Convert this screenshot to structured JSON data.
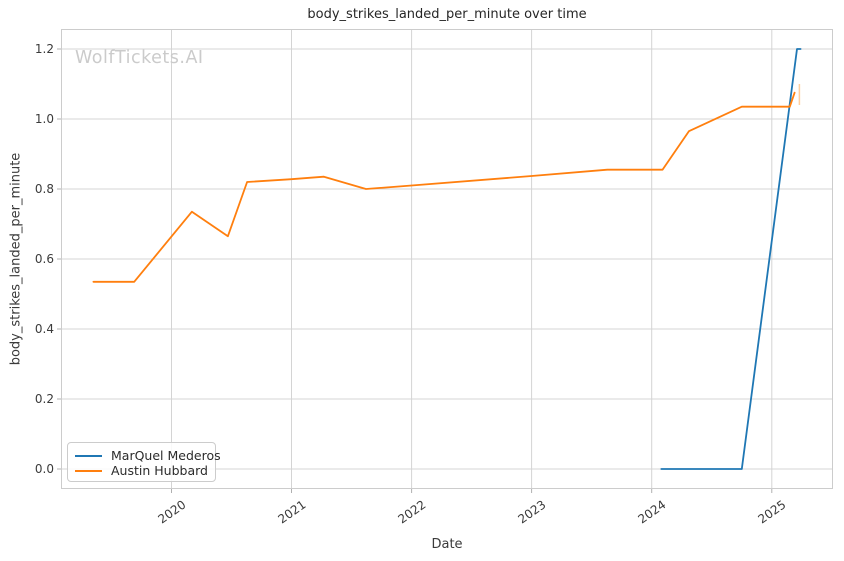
{
  "watermark": "WolfTickets.AI",
  "colors": {
    "grid": "#d4d4d4",
    "spine": "#cccccc",
    "tick": "#b0b0b0",
    "tick_text": "#3b3b3b",
    "title_text": "#262626",
    "watermark_text": "#cbcbcb",
    "series_blue": "#1f77b4",
    "series_orange": "#ff7f0e"
  },
  "legend": {
    "position": "lower left",
    "items": [
      {
        "label": "MarQuel Mederos",
        "color": "#1f77b4"
      },
      {
        "label": "Austin Hubbard",
        "color": "#ff7f0e"
      }
    ]
  },
  "chart_data": {
    "type": "line",
    "title": "body_strikes_landed_per_minute over time",
    "xlabel": "Date",
    "ylabel": "body_strikes_landed_per_minute",
    "x_unit": "decimal_year",
    "x_tick_labels": [
      "2020",
      "2021",
      "2022",
      "2023",
      "2024",
      "2025"
    ],
    "y_tick_labels": [
      "0.0",
      "0.2",
      "0.4",
      "0.6",
      "0.8",
      "1.0",
      "1.2"
    ],
    "xlim": [
      2019.08,
      2025.51
    ],
    "ylim": [
      -0.057,
      1.257
    ],
    "grid": true,
    "series": [
      {
        "name": "MarQuel Mederos",
        "color": "#1f77b4",
        "x": [
          2024.08,
          2024.75,
          2025.21,
          2025.24
        ],
        "y": [
          0.0,
          0.0,
          1.2,
          1.2
        ]
      },
      {
        "name": "Austin Hubbard",
        "color": "#ff7f0e",
        "x": [
          2019.35,
          2019.69,
          2020.17,
          2020.47,
          2020.63,
          2021.0,
          2021.27,
          2021.62,
          2022.0,
          2023.0,
          2023.63,
          2024.09,
          2024.31,
          2024.75,
          2025.15,
          2025.19
        ],
        "y": [
          0.535,
          0.535,
          0.735,
          0.665,
          0.82,
          0.828,
          0.835,
          0.8,
          0.81,
          0.837,
          0.855,
          0.855,
          0.965,
          1.035,
          1.035,
          1.075
        ]
      }
    ],
    "end_highlight": {
      "x": 2025.23,
      "y_from": 1.04,
      "y_to": 1.1,
      "color": "#ffcf9e"
    }
  }
}
